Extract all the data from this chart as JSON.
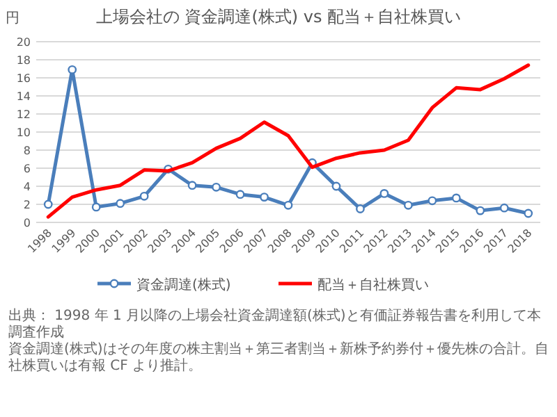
{
  "chart_data": {
    "type": "line",
    "title": "上場会社の 資金調達(株式) vs 配当＋自社株買い",
    "ylabel": "円",
    "categories": [
      "1998",
      "1999",
      "2000",
      "2001",
      "2002",
      "2003",
      "2004",
      "2005",
      "2006",
      "2007",
      "2008",
      "2009",
      "2010",
      "2011",
      "2012",
      "2013",
      "2014",
      "2015",
      "2016",
      "2017",
      "2018"
    ],
    "series": [
      {
        "name": "資金調達(株式)",
        "color": "#4a7ebb",
        "marker": "circle",
        "values": [
          2.0,
          16.9,
          1.7,
          2.1,
          2.9,
          5.9,
          4.1,
          3.9,
          3.1,
          2.8,
          1.9,
          6.6,
          4.0,
          1.5,
          3.2,
          1.9,
          2.4,
          2.7,
          1.3,
          1.6,
          1.0
        ]
      },
      {
        "name": "配当＋自社株買い",
        "color": "#ff0000",
        "marker": "none",
        "values": [
          0.6,
          2.8,
          3.6,
          4.1,
          5.8,
          5.7,
          6.6,
          8.2,
          9.3,
          11.1,
          9.6,
          6.1,
          7.1,
          7.7,
          8.0,
          9.1,
          12.7,
          14.9,
          14.7,
          15.9,
          17.4
        ]
      }
    ],
    "ylim": [
      0,
      20
    ],
    "yticks": [
      0,
      2,
      4,
      6,
      8,
      10,
      12,
      14,
      16,
      18,
      20
    ],
    "grid": "y",
    "legend": "bottom",
    "annotations": [
      "出典： 1998 年 1 月以降の上場会社資金調達額(株式)と有価証券報告書を利用して本調査作成",
      "資金調達(株式)はその年度の株主割当＋第三者割当＋新株予約券付＋優先株の合計。自社株買いは有報 CF より推計。"
    ]
  }
}
